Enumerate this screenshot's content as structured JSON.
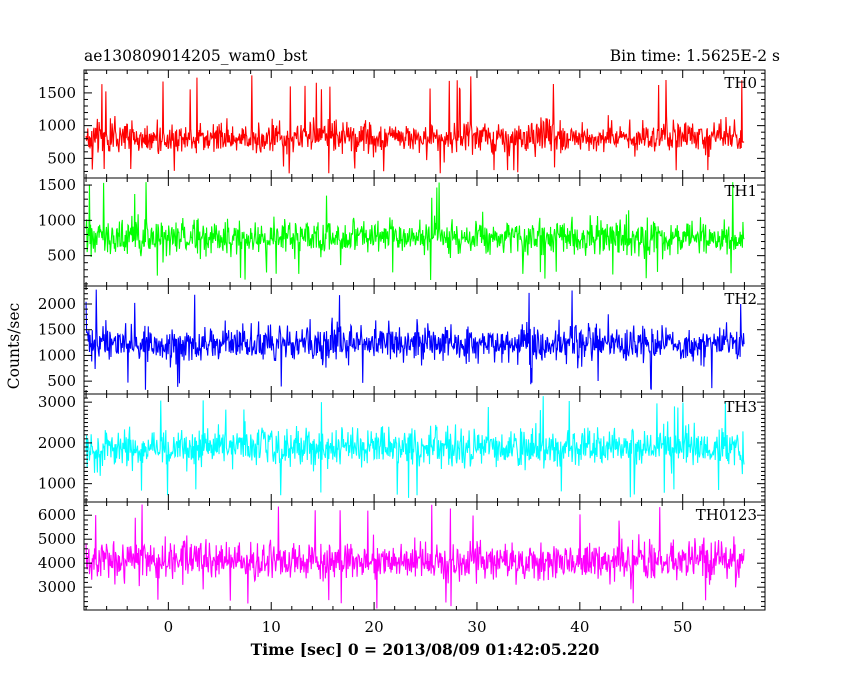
{
  "header": {
    "title": "ae130809014205_wam0_bst",
    "bin_time": "Bin time: 1.5625E-2 s"
  },
  "chart_data": {
    "type": "line",
    "xlabel": "Time [sec] 0 = 2013/08/09 01:42:05.220",
    "ylabel": "Counts/sec",
    "xlim": [
      -8.2,
      58
    ],
    "x_ticks": [
      0,
      10,
      20,
      30,
      40,
      50
    ],
    "x_tick_labels": [
      "0",
      "10",
      "20",
      "30",
      "40",
      "50"
    ],
    "data_x_range": [
      -8,
      56
    ],
    "bin_time_s": 0.015625,
    "panels": [
      {
        "name": "TH0",
        "color": "#ff0000",
        "ylim": [
          200,
          1850
        ],
        "y_ticks": [
          500,
          1000,
          1500
        ],
        "y_tick_labels": [
          "500",
          "1000",
          "1500"
        ],
        "mean": 820,
        "spread": 175,
        "peak": 1800,
        "floor": 270
      },
      {
        "name": "TH1",
        "color": "#00ff00",
        "ylim": [
          70,
          1600
        ],
        "y_ticks": [
          500,
          1000,
          1500
        ],
        "y_tick_labels": [
          "500",
          "1000",
          "1500"
        ],
        "mean": 760,
        "spread": 175,
        "peak": 1550,
        "floor": 150
      },
      {
        "name": "TH2",
        "color": "#0000ff",
        "ylim": [
          250,
          2350
        ],
        "y_ticks": [
          500,
          1000,
          1500,
          2000
        ],
        "y_tick_labels": [
          "500",
          "1000",
          "1500",
          "2000"
        ],
        "mean": 1230,
        "spread": 245,
        "peak": 2300,
        "floor": 330
      },
      {
        "name": "TH3",
        "color": "#00ffff",
        "ylim": [
          550,
          3200
        ],
        "y_ticks": [
          1000,
          2000,
          3000
        ],
        "y_tick_labels": [
          "1000",
          "2000",
          "3000"
        ],
        "mean": 1880,
        "spread": 330,
        "peak": 3150,
        "floor": 640
      },
      {
        "name": "TH0123",
        "color": "#ff00ff",
        "ylim": [
          2050,
          6550
        ],
        "y_ticks": [
          3000,
          4000,
          5000,
          6000
        ],
        "y_tick_labels": [
          "3000",
          "4000",
          "5000",
          "6000"
        ],
        "mean": 4080,
        "spread": 560,
        "peak": 6450,
        "floor": 2100
      }
    ]
  }
}
